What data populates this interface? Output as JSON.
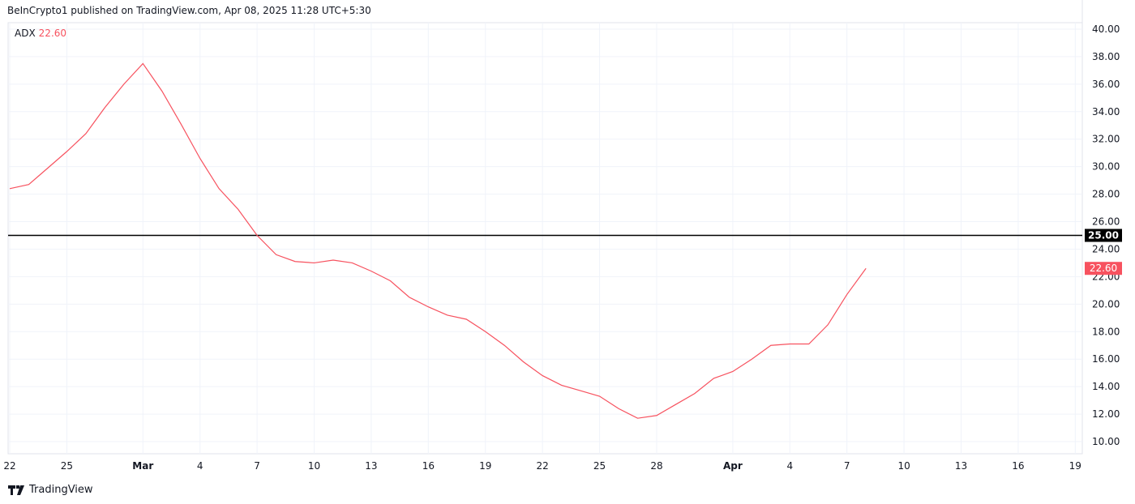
{
  "header": {
    "published": "BeInCrypto1 published on TradingView.com, Apr 08, 2025 11:28 UTC+5:30"
  },
  "legend": {
    "name": "ADX",
    "value": "22.60"
  },
  "logo": {
    "text": "TradingView"
  },
  "chart_data": {
    "type": "line",
    "title": "",
    "xlabel": "",
    "ylabel": "",
    "ylim": [
      10,
      40
    ],
    "grid": true,
    "yticks": [
      "40.00",
      "38.00",
      "36.00",
      "34.00",
      "32.00",
      "30.00",
      "28.00",
      "26.00",
      "24.00",
      "22.00",
      "20.00",
      "18.00",
      "16.00",
      "14.00",
      "12.00",
      "10.00"
    ],
    "xticks": [
      {
        "date": "2025-02-22",
        "label": "22"
      },
      {
        "date": "2025-02-25",
        "label": "25"
      },
      {
        "date": "2025-03-01",
        "label": "Mar",
        "bold": true
      },
      {
        "date": "2025-03-04",
        "label": "4"
      },
      {
        "date": "2025-03-07",
        "label": "7"
      },
      {
        "date": "2025-03-10",
        "label": "10"
      },
      {
        "date": "2025-03-13",
        "label": "13"
      },
      {
        "date": "2025-03-16",
        "label": "16"
      },
      {
        "date": "2025-03-19",
        "label": "19"
      },
      {
        "date": "2025-03-22",
        "label": "22"
      },
      {
        "date": "2025-03-25",
        "label": "25"
      },
      {
        "date": "2025-03-28",
        "label": "28"
      },
      {
        "date": "2025-04-01",
        "label": "Apr",
        "bold": true
      },
      {
        "date": "2025-04-04",
        "label": "4"
      },
      {
        "date": "2025-04-07",
        "label": "7"
      },
      {
        "date": "2025-04-10",
        "label": "10"
      },
      {
        "date": "2025-04-13",
        "label": "13"
      },
      {
        "date": "2025-04-16",
        "label": "16"
      },
      {
        "date": "2025-04-19",
        "label": "19"
      }
    ],
    "series": [
      {
        "name": "ADX",
        "color": "#f7525f",
        "start_date": "2025-02-22",
        "values": [
          28.4,
          28.7,
          29.9,
          31.1,
          32.4,
          34.3,
          36.0,
          37.5,
          35.5,
          33.1,
          30.6,
          28.4,
          26.9,
          25.0,
          23.6,
          23.1,
          23.0,
          23.2,
          23.0,
          22.4,
          21.7,
          20.5,
          19.8,
          19.2,
          18.9,
          18.0,
          17.0,
          15.8,
          14.8,
          14.1,
          13.7,
          13.3,
          12.4,
          11.7,
          11.9,
          12.7,
          13.5,
          14.6,
          15.1,
          16.0,
          17.0,
          17.1,
          17.1,
          18.5,
          20.7,
          22.6
        ]
      }
    ],
    "hline": {
      "value": 25.0,
      "label": "25.00",
      "color": "#000000"
    },
    "last_value_label": {
      "label": "22.60",
      "color": "#f7525f"
    }
  }
}
